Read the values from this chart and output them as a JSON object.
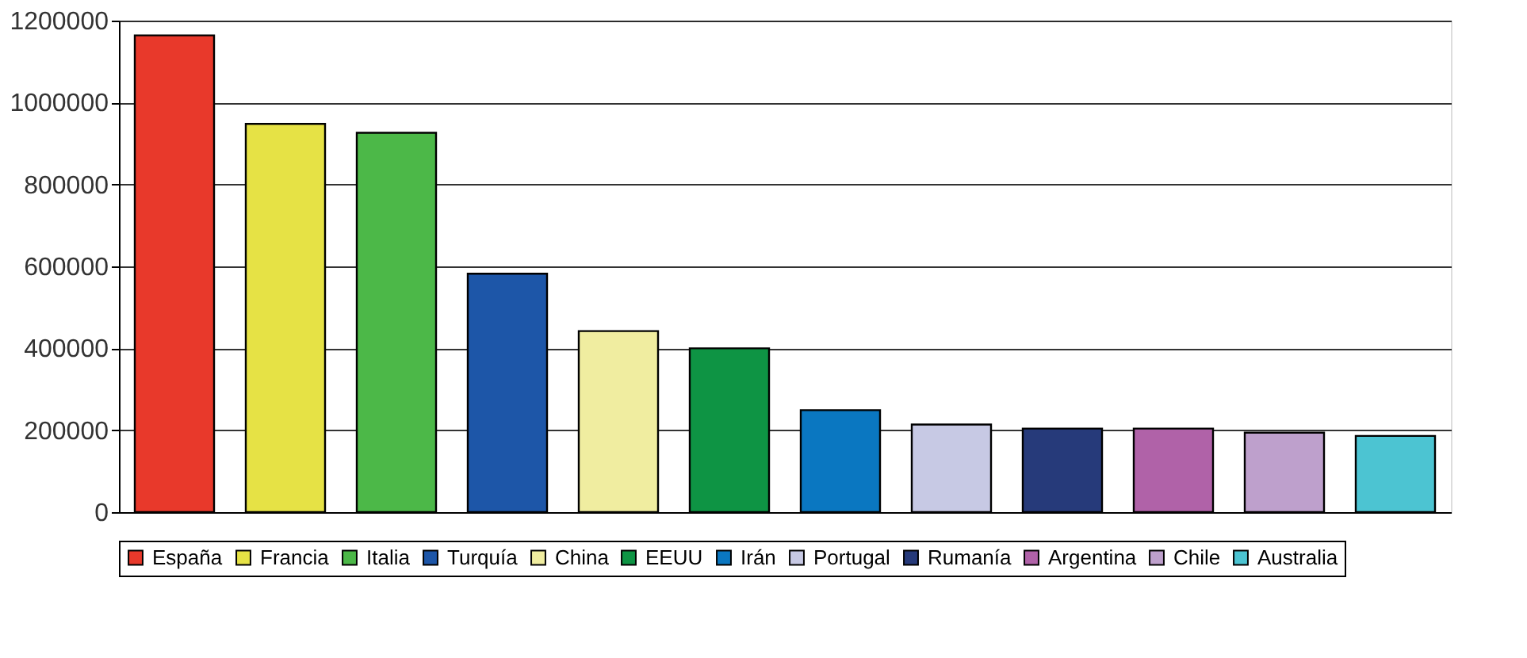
{
  "chart_data": {
    "type": "bar",
    "categories": [
      null,
      null,
      null,
      null,
      null,
      null,
      null,
      null,
      null,
      null,
      null,
      null
    ],
    "series": [
      {
        "name": "España",
        "color": "#e8392b",
        "values": [
          1164000,
          null,
          null,
          null,
          null,
          null,
          null,
          null,
          null,
          null,
          null,
          null
        ]
      },
      {
        "name": "Francia",
        "color": "#e6e245",
        "values": [
          null,
          948000,
          null,
          null,
          null,
          null,
          null,
          null,
          null,
          null,
          null,
          null
        ]
      },
      {
        "name": "Italia",
        "color": "#4cb848",
        "values": [
          null,
          null,
          926000,
          null,
          null,
          null,
          null,
          null,
          null,
          null,
          null,
          null
        ]
      },
      {
        "name": "Turquía",
        "color": "#1d56a8",
        "values": [
          null,
          null,
          null,
          582000,
          null,
          null,
          null,
          null,
          null,
          null,
          null,
          null
        ]
      },
      {
        "name": "China",
        "color": "#f0eda0",
        "values": [
          null,
          null,
          null,
          null,
          442000,
          null,
          null,
          null,
          null,
          null,
          null,
          null
        ]
      },
      {
        "name": "EEUU",
        "color": "#0e9444",
        "values": [
          null,
          null,
          null,
          null,
          null,
          400000,
          null,
          null,
          null,
          null,
          null,
          null
        ]
      },
      {
        "name": "Irán",
        "color": "#0a77c1",
        "values": [
          null,
          null,
          null,
          null,
          null,
          null,
          249000,
          null,
          null,
          null,
          null,
          null
        ]
      },
      {
        "name": "Portugal",
        "color": "#c7c9e4",
        "values": [
          null,
          null,
          null,
          null,
          null,
          null,
          null,
          214000,
          null,
          null,
          null,
          null
        ]
      },
      {
        "name": "Rumanía",
        "color": "#263a7a",
        "values": [
          null,
          null,
          null,
          null,
          null,
          null,
          null,
          null,
          204000,
          null,
          null,
          null
        ]
      },
      {
        "name": "Argentina",
        "color": "#b062a8",
        "values": [
          null,
          null,
          null,
          null,
          null,
          null,
          null,
          null,
          null,
          204000,
          null,
          null
        ]
      },
      {
        "name": "Chile",
        "color": "#bea0cc",
        "values": [
          null,
          null,
          null,
          null,
          null,
          null,
          null,
          null,
          null,
          null,
          194000,
          null
        ]
      },
      {
        "name": "Australia",
        "color": "#4cc4d2",
        "values": [
          null,
          null,
          null,
          null,
          null,
          null,
          null,
          null,
          null,
          null,
          null,
          186000
        ]
      }
    ],
    "ylim": [
      0,
      1200000
    ],
    "yticks": [
      0,
      200000,
      400000,
      600000,
      800000,
      1000000,
      1200000
    ],
    "grid": "y",
    "legend": "bottom",
    "tick_labels": "y"
  }
}
